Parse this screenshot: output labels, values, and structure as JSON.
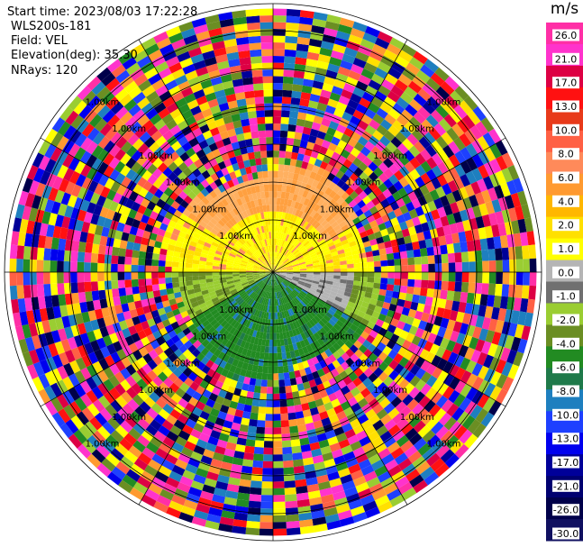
{
  "header": {
    "start_time": "Start time: 2023/08/03 17:22:28",
    "instrument": "WLS200s-181",
    "field": "Field: VEL",
    "elevation": "Elevation(deg): 35.30",
    "nrays": "NRays: 120"
  },
  "chart_data": {
    "type": "heatmap",
    "projection": "polar-ppi",
    "field": "VEL",
    "n_rays": 120,
    "range_rings_km": [
      1.0,
      1.0,
      1.0,
      1.0,
      1.0,
      1.0,
      1.0
    ],
    "ring_label": "1.00km",
    "colorbar": {
      "unit": "m/s",
      "tick_labels": [
        "26.0",
        "21.0",
        "17.0",
        "13.0",
        "10.0",
        "8.0",
        "6.0",
        "4.0",
        "2.0",
        "1.0",
        "0.0",
        "-1.0",
        "-2.0",
        "-4.0",
        "-6.0",
        "-8.0",
        "-10.0",
        "-13.0",
        "-17.0",
        "-21.0",
        "-26.0",
        "-30.0"
      ],
      "colors": [
        "#ff2fa6",
        "#ff33cc",
        "#dd0044",
        "#ff1111",
        "#e83a1a",
        "#ff6044",
        "#ff8a5a",
        "#ff9a30",
        "#ffb700",
        "#ffe000",
        "#ffff00",
        "#b5b5b5",
        "#707070",
        "#9acd32",
        "#6b8e23",
        "#228b22",
        "#1f7a4a",
        "#1e7fbf",
        "#1e40ff",
        "#0000ee",
        "#000099",
        "#000070",
        "#00004a",
        "#101060"
      ]
    }
  }
}
